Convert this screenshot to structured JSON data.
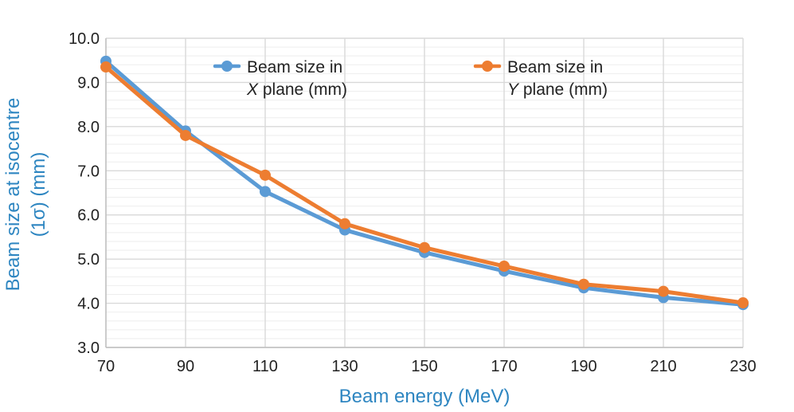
{
  "chart_data": {
    "type": "line",
    "title": "",
    "xlabel": "Beam energy (MeV)",
    "ylabel": "Beam size at isocentre",
    "ylabel_sub": "(1σ) (mm)",
    "x": [
      70,
      90,
      110,
      130,
      150,
      170,
      190,
      210,
      230
    ],
    "xlim": [
      70,
      230
    ],
    "ylim": [
      3.0,
      10.0
    ],
    "x_ticks": [
      "70",
      "90",
      "110",
      "130",
      "150",
      "170",
      "190",
      "210",
      "230"
    ],
    "y_ticks": [
      "3.0",
      "4.0",
      "5.0",
      "6.0",
      "7.0",
      "8.0",
      "9.0",
      "10.0"
    ],
    "grid": true,
    "legend_position": "top",
    "series": [
      {
        "name": "Beam size in X plane (mm)",
        "legend_line1": "Beam size in",
        "legend_axis": "X",
        "legend_rest": " plane (mm)",
        "color": "#5B9BD5",
        "values": [
          9.48,
          7.9,
          6.53,
          5.66,
          5.15,
          4.73,
          4.35,
          4.13,
          3.97
        ]
      },
      {
        "name": "Beam size in Y plane (mm)",
        "legend_line1": "Beam size in",
        "legend_axis": "Y",
        "legend_rest": " plane (mm)",
        "color": "#ED7D31",
        "values": [
          9.35,
          7.8,
          6.9,
          5.8,
          5.26,
          4.84,
          4.43,
          4.27,
          4.01
        ]
      }
    ]
  }
}
